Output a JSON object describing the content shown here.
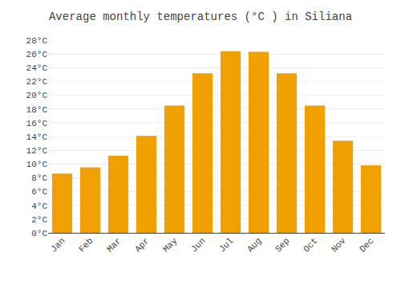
{
  "chart_data": {
    "type": "bar",
    "title": "Average monthly temperatures (°C ) in Siliana",
    "categories": [
      "Jan",
      "Feb",
      "Mar",
      "Apr",
      "May",
      "Jun",
      "Jul",
      "Aug",
      "Sep",
      "Oct",
      "Nov",
      "Dec"
    ],
    "values": [
      8.6,
      9.5,
      11.2,
      14.1,
      18.5,
      23.2,
      26.4,
      26.3,
      23.2,
      18.5,
      13.4,
      9.8
    ],
    "color": "#F0A000",
    "ylim": [
      0,
      28
    ],
    "yticks": [
      {
        "value": 0,
        "label": "0°C"
      },
      {
        "value": 2,
        "label": "2°C"
      },
      {
        "value": 4,
        "label": "4°C"
      },
      {
        "value": 6,
        "label": "6°C"
      },
      {
        "value": 8,
        "label": "8°C"
      },
      {
        "value": 10,
        "label": "10°C"
      },
      {
        "value": 12,
        "label": "12°C"
      },
      {
        "value": 14,
        "label": "14°C"
      },
      {
        "value": 16,
        "label": "16°C"
      },
      {
        "value": 18,
        "label": "18°C"
      },
      {
        "value": 20,
        "label": "20°C"
      },
      {
        "value": 22,
        "label": "22°C"
      },
      {
        "value": 24,
        "label": "24°C"
      },
      {
        "value": 26,
        "label": "26°C"
      },
      {
        "value": 28,
        "label": "28°C"
      }
    ],
    "grid": true
  }
}
